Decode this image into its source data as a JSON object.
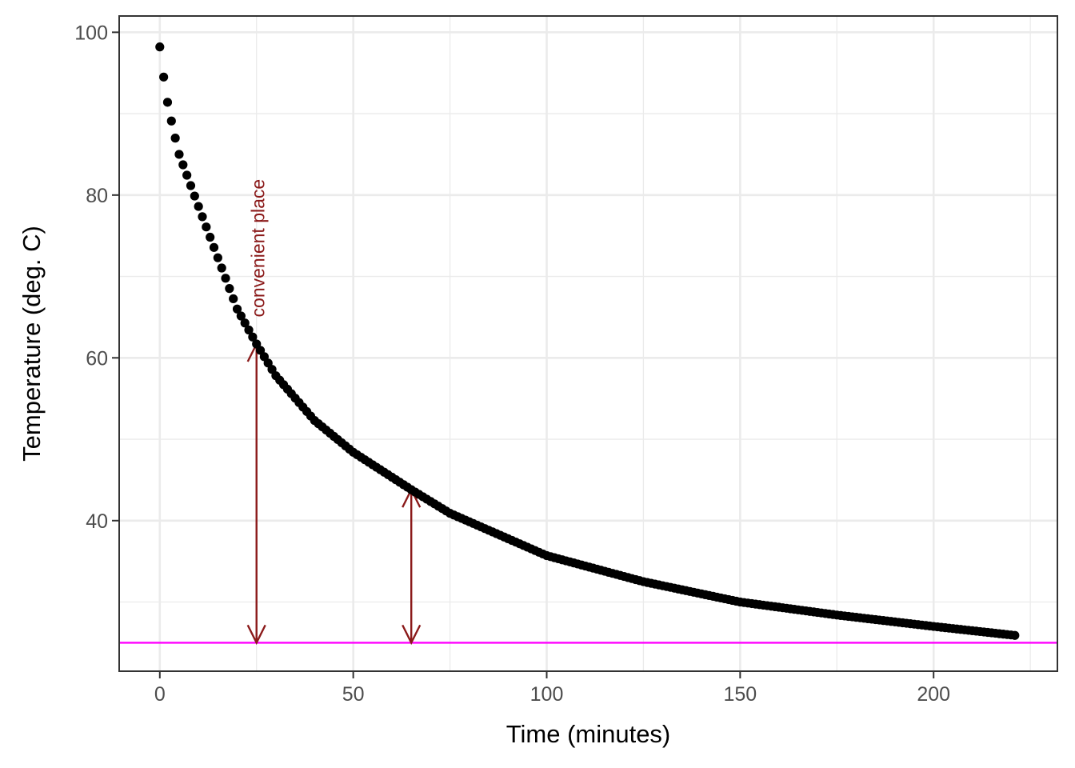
{
  "chart_data": {
    "type": "scatter",
    "title": "",
    "xlabel": "Time (minutes)",
    "ylabel": "Temperature (deg. C)",
    "xlim": [
      -10.5,
      232
    ],
    "ylim": [
      21.5,
      102
    ],
    "x_ticks": [
      0,
      50,
      100,
      150,
      200
    ],
    "y_ticks": [
      40,
      60,
      80,
      100
    ],
    "grid": true,
    "legend": "none",
    "series": [
      {
        "model": "exponential decay toward ambient",
        "x_range": [
          0,
          221
        ],
        "x_step": 1,
        "x_sample": [
          0,
          1,
          2,
          3,
          4,
          5,
          10,
          20,
          25,
          30,
          40,
          50,
          65,
          75,
          100,
          125,
          150,
          175,
          200,
          221
        ],
        "y_sample": [
          98.2,
          94.5,
          91.4,
          89.1,
          87.0,
          85.0,
          78.6,
          66.0,
          61.7,
          57.8,
          52.3,
          48.4,
          43.8,
          40.9,
          35.7,
          32.5,
          30.0,
          28.4,
          27.0,
          25.9
        ],
        "color": "#000000"
      }
    ],
    "reference_line": {
      "y": 25,
      "orientation": "horizontal",
      "color": "#ff00ff"
    },
    "annotations": [
      {
        "type": "double-arrow",
        "x": 25,
        "y_from": 25,
        "y_to": 61.7,
        "color": "#8b1a1a"
      },
      {
        "type": "double-arrow",
        "x": 65,
        "y_from": 25,
        "y_to": 43.8,
        "color": "#8b1a1a"
      },
      {
        "type": "text",
        "text": "convenient place",
        "x": 25,
        "y": 65,
        "rotation": -90,
        "color": "#8b1a1a"
      }
    ]
  }
}
